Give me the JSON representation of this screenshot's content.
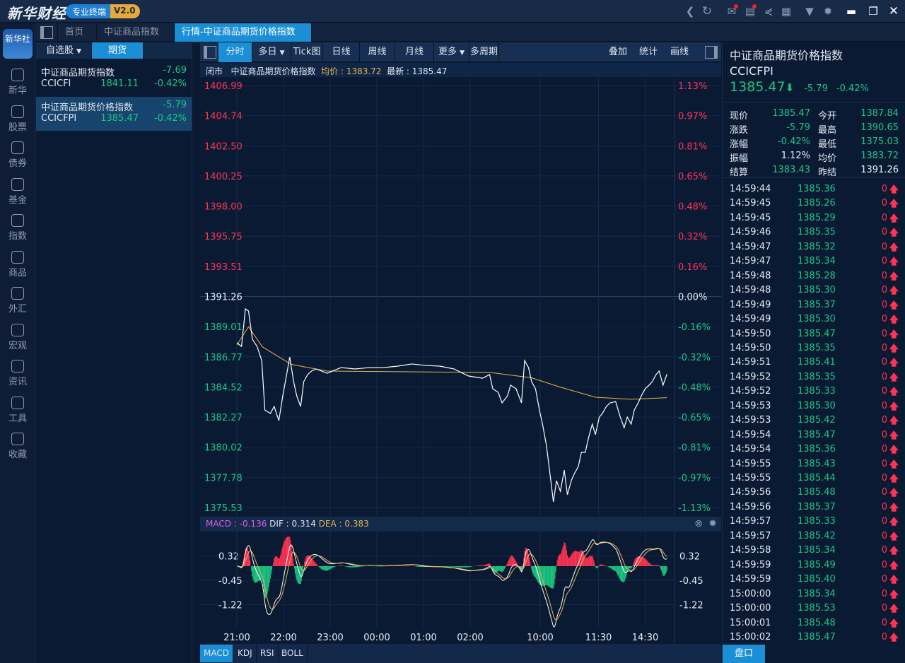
{
  "app": {
    "logo": "新华财经",
    "badge": "专业终端",
    "version": "V2.0",
    "logo_icon": "新华社"
  },
  "topbar_icons": [
    "back-icon",
    "refresh-icon",
    "mail-icon",
    "message-icon",
    "share-icon",
    "notes-icon",
    "skin-icon",
    "settings-icon",
    "minimize-icon",
    "restore-icon",
    "close-icon"
  ],
  "sidebar": {
    "items": [
      {
        "label": "新华",
        "icon": "xinhua-icon"
      },
      {
        "label": "股票",
        "icon": "stock-icon"
      },
      {
        "label": "债券",
        "icon": "bond-icon"
      },
      {
        "label": "基金",
        "icon": "fund-icon"
      },
      {
        "label": "指数",
        "icon": "index-icon"
      },
      {
        "label": "商品",
        "icon": "commodity-icon"
      },
      {
        "label": "外汇",
        "icon": "forex-icon"
      },
      {
        "label": "宏观",
        "icon": "macro-icon"
      },
      {
        "label": "资讯",
        "icon": "news-icon"
      },
      {
        "label": "工具",
        "icon": "tools-icon"
      },
      {
        "label": "收藏",
        "icon": "favorites-icon"
      }
    ]
  },
  "tabs": [
    {
      "label": "首页"
    },
    {
      "label": "中证商品指数"
    },
    {
      "label": "行情-中证商品期货价格指数",
      "close": "×"
    }
  ],
  "watchlist": {
    "tabs": [
      "自选股",
      "期货"
    ],
    "items": [
      {
        "name": "中证商品期货指数",
        "change": "-7.69",
        "code": "CCICFI",
        "price": "1841.11",
        "pct": "-0.42%"
      },
      {
        "name": "中证商品期货价格指数",
        "change": "-5.79",
        "code": "CCICFPI",
        "price": "1385.47",
        "pct": "-0.42%"
      }
    ]
  },
  "chart_toolbar": {
    "items": [
      "分时",
      "多日",
      "Tick图",
      "日线",
      "周线",
      "月线",
      "更多",
      "多周期"
    ],
    "right": [
      "叠加",
      "统计",
      "画线"
    ]
  },
  "chart_info": {
    "status": "闭市",
    "name": "中证商品期货价格指数",
    "avg_label": "均价 : ",
    "avg": "1383.72",
    "last_label": "最新 : ",
    "last": "1385.47"
  },
  "colors": {
    "up": "#ff3352",
    "down": "#1bc783",
    "price_line": "#ffffff",
    "avg_line": "#e6b451",
    "accent": "#1a8fd6"
  },
  "chart_data": {
    "type": "line",
    "prev_close": 1391.26,
    "y_ticks": [
      "1406.99",
      "1404.74",
      "1402.50",
      "1400.25",
      "1398.00",
      "1395.75",
      "1393.51",
      "1391.26",
      "1389.01",
      "1386.77",
      "1384.52",
      "1382.27",
      "1380.02",
      "1377.78",
      "1375.53"
    ],
    "pct_ticks": [
      "1.13%",
      "0.97%",
      "0.81%",
      "0.65%",
      "0.48%",
      "0.32%",
      "0.16%",
      "0.00%",
      "-0.16%",
      "-0.32%",
      "-0.48%",
      "-0.65%",
      "-0.81%",
      "-0.97%",
      "-1.13%"
    ],
    "ylim": [
      1375.53,
      1406.99
    ],
    "x_ticks": [
      {
        "label": "21:00",
        "minute": 0
      },
      {
        "label": "22:00",
        "minute": 60
      },
      {
        "label": "23:00",
        "minute": 120
      },
      {
        "label": "00:00",
        "minute": 180
      },
      {
        "label": "01:00",
        "minute": 240
      },
      {
        "label": "02:00",
        "minute": 300
      },
      {
        "label": "10:00",
        "minute": 390
      },
      {
        "label": "11:30",
        "minute": 465
      },
      {
        "label": "14:30",
        "minute": 525
      }
    ],
    "price": [
      [
        0,
        1387.81
      ],
      [
        6,
        1387.54
      ],
      [
        11,
        1390.34
      ],
      [
        15,
        1390.18
      ],
      [
        20,
        1388.07
      ],
      [
        26,
        1387.54
      ],
      [
        32,
        1386.49
      ],
      [
        36,
        1382.8
      ],
      [
        43,
        1382.54
      ],
      [
        48,
        1383.06
      ],
      [
        54,
        1382.01
      ],
      [
        59,
        1383.85
      ],
      [
        64,
        1385.44
      ],
      [
        68,
        1386.75
      ],
      [
        73,
        1384.91
      ],
      [
        77,
        1383.85
      ],
      [
        82,
        1383.06
      ],
      [
        86,
        1384.91
      ],
      [
        91,
        1385.44
      ],
      [
        96,
        1385.7
      ],
      [
        102,
        1385.86
      ],
      [
        116,
        1385.54
      ],
      [
        134,
        1385.96
      ],
      [
        152,
        1385.86
      ],
      [
        170,
        1385.96
      ],
      [
        188,
        1385.96
      ],
      [
        207,
        1386.07
      ],
      [
        225,
        1386.23
      ],
      [
        243,
        1386.12
      ],
      [
        261,
        1386.07
      ],
      [
        279,
        1385.86
      ],
      [
        298,
        1385.33
      ],
      [
        316,
        1385.17
      ],
      [
        325,
        1385.44
      ],
      [
        329,
        1384.38
      ],
      [
        336,
        1384.12
      ],
      [
        341,
        1383.33
      ],
      [
        348,
        1383.85
      ],
      [
        352,
        1384.65
      ],
      [
        359,
        1384.38
      ],
      [
        366,
        1383.33
      ],
      [
        370,
        1386.49
      ],
      [
        375,
        1385.96
      ],
      [
        379,
        1384.91
      ],
      [
        384,
        1384.38
      ],
      [
        389,
        1382.8
      ],
      [
        393,
        1381.75
      ],
      [
        398,
        1380.17
      ],
      [
        402,
        1378.32
      ],
      [
        407,
        1375.95
      ],
      [
        411,
        1377.53
      ],
      [
        416,
        1376.74
      ],
      [
        421,
        1378.32
      ],
      [
        425,
        1376.48
      ],
      [
        430,
        1377.53
      ],
      [
        434,
        1378.06
      ],
      [
        439,
        1378.58
      ],
      [
        443,
        1379.64
      ],
      [
        448,
        1379.64
      ],
      [
        452,
        1380.69
      ],
      [
        457,
        1381.75
      ],
      [
        461,
        1380.96
      ],
      [
        466,
        1382.27
      ],
      [
        470,
        1382.54
      ],
      [
        475,
        1383.06
      ],
      [
        480,
        1383.33
      ],
      [
        487,
        1383.43
      ],
      [
        493,
        1382.27
      ],
      [
        498,
        1381.48
      ],
      [
        502,
        1382.27
      ],
      [
        507,
        1381.75
      ],
      [
        511,
        1382.8
      ],
      [
        516,
        1383.33
      ],
      [
        520,
        1383.85
      ],
      [
        525,
        1384.38
      ],
      [
        530,
        1384.65
      ],
      [
        534,
        1384.91
      ],
      [
        539,
        1385.44
      ],
      [
        543,
        1385.7
      ],
      [
        548,
        1384.65
      ],
      [
        553,
        1385.47
      ]
    ],
    "avg": [
      [
        0,
        1387.65
      ],
      [
        15,
        1389.0
      ],
      [
        33,
        1387.5
      ],
      [
        70,
        1386.2
      ],
      [
        116,
        1385.7
      ],
      [
        325,
        1385.6
      ],
      [
        379,
        1385.2
      ],
      [
        416,
        1384.5
      ],
      [
        461,
        1383.75
      ],
      [
        507,
        1383.6
      ],
      [
        553,
        1383.72
      ]
    ]
  },
  "macd": {
    "label": "MACD : ",
    "value": "-0.136",
    "dif_label": "DIF : ",
    "dif": "0.314",
    "dea_label": "DEA : ",
    "dea": "0.383",
    "y_ticks": [
      "0.32",
      "-0.45",
      "-1.22"
    ],
    "tabs": [
      "MACD",
      "KDJ",
      "RSI",
      "BOLL"
    ]
  },
  "quote": {
    "name": "中证商品期货价格指数",
    "code": "CCICFPI",
    "price": "1385.47",
    "change": "-5.79",
    "pct": "-0.42%",
    "stats": [
      [
        "现价",
        "1385.47",
        "今开",
        "1387.84"
      ],
      [
        "涨跌",
        "-5.79",
        "最高",
        "1390.65"
      ],
      [
        "涨幅",
        "-0.42%",
        "最低",
        "1375.03"
      ],
      [
        "振幅",
        "1.12%",
        "均价",
        "1383.72"
      ],
      [
        "结算",
        "1383.43",
        "昨结",
        "1391.26"
      ]
    ],
    "stat_colors": [
      [
        "down",
        "down"
      ],
      [
        "down",
        "down"
      ],
      [
        "down",
        "down"
      ],
      [
        "white",
        "down"
      ],
      [
        "down",
        "white"
      ]
    ],
    "ticks": [
      [
        "14:59:44",
        "1385.36"
      ],
      [
        "14:59:45",
        "1385.26"
      ],
      [
        "14:59:45",
        "1385.29"
      ],
      [
        "14:59:46",
        "1385.35"
      ],
      [
        "14:59:47",
        "1385.32"
      ],
      [
        "14:59:47",
        "1385.34"
      ],
      [
        "14:59:48",
        "1385.28"
      ],
      [
        "14:59:48",
        "1385.30"
      ],
      [
        "14:59:49",
        "1385.37"
      ],
      [
        "14:59:49",
        "1385.30"
      ],
      [
        "14:59:50",
        "1385.47"
      ],
      [
        "14:59:50",
        "1385.35"
      ],
      [
        "14:59:51",
        "1385.41"
      ],
      [
        "14:59:52",
        "1385.35"
      ],
      [
        "14:59:52",
        "1385.33"
      ],
      [
        "14:59:53",
        "1385.30"
      ],
      [
        "14:59:53",
        "1385.42"
      ],
      [
        "14:59:54",
        "1385.47"
      ],
      [
        "14:59:54",
        "1385.36"
      ],
      [
        "14:59:55",
        "1385.43"
      ],
      [
        "14:59:55",
        "1385.44"
      ],
      [
        "14:59:56",
        "1385.48"
      ],
      [
        "14:59:56",
        "1385.37"
      ],
      [
        "14:59:57",
        "1385.33"
      ],
      [
        "14:59:57",
        "1385.42"
      ],
      [
        "14:59:58",
        "1385.34"
      ],
      [
        "14:59:59",
        "1385.49"
      ],
      [
        "14:59:59",
        "1385.40"
      ],
      [
        "15:00:00",
        "1385.34"
      ],
      [
        "15:00:00",
        "1385.53"
      ],
      [
        "15:00:01",
        "1385.48"
      ],
      [
        "15:00:02",
        "1385.47"
      ]
    ],
    "tick_volume": "0",
    "pankou": "盘口"
  }
}
